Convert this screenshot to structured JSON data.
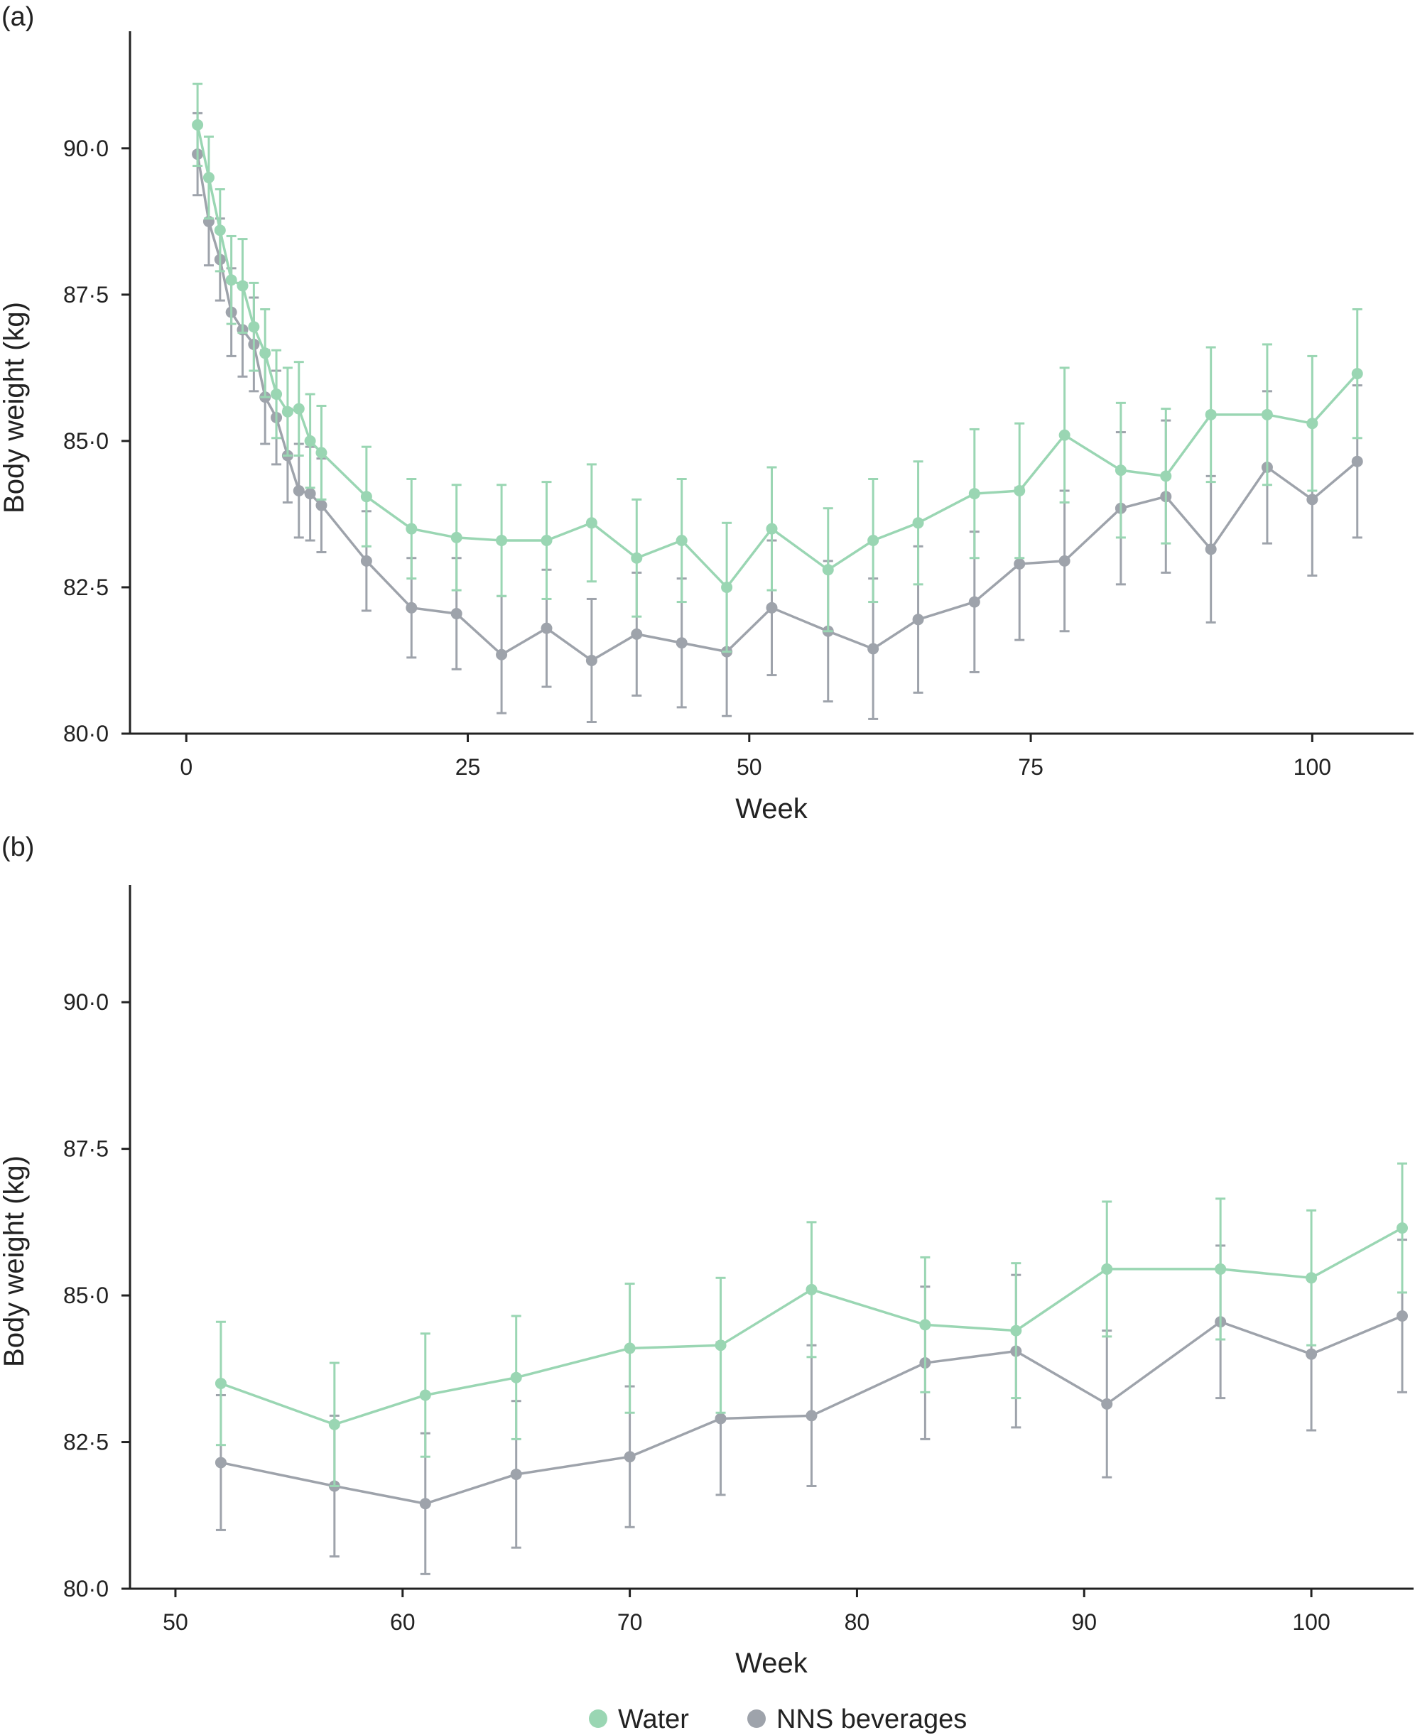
{
  "colors": {
    "water": "#9ad6b3",
    "nns": "#9ea3ab",
    "axis": "#222222"
  },
  "legend": [
    {
      "label": "Water",
      "color": "#9ad6b3"
    },
    {
      "label": "NNS beverages",
      "color": "#9ea3ab"
    }
  ],
  "chart_data": [
    {
      "type": "line",
      "panel_label": "(a)",
      "xlabel": "Week",
      "ylabel": "Body weight (kg)",
      "xlim": [
        -5,
        109
      ],
      "ylim": [
        80,
        92
      ],
      "xticks": [
        0,
        25,
        50,
        75,
        100
      ],
      "xtick_labels": [
        "0",
        "25",
        "50",
        "75",
        "100"
      ],
      "yticks": [
        80,
        82.5,
        85,
        87.5,
        90
      ],
      "ytick_labels": [
        "80·0",
        "82·5",
        "85·0",
        "87·5",
        "90·0"
      ],
      "grid": false,
      "series": [
        {
          "name": "Water",
          "color": "#9ad6b3",
          "x": [
            1,
            2,
            3,
            4,
            5,
            6,
            7,
            8,
            9,
            10,
            11,
            12,
            16,
            20,
            24,
            28,
            32,
            36,
            40,
            44,
            48,
            52,
            57,
            61,
            65,
            70,
            74,
            78,
            83,
            87,
            91,
            96,
            100,
            104
          ],
          "y": [
            90.4,
            89.5,
            88.6,
            87.75,
            87.65,
            86.95,
            86.5,
            85.8,
            85.5,
            85.55,
            85.0,
            84.8,
            84.05,
            83.5,
            83.35,
            83.3,
            83.3,
            83.6,
            83.0,
            83.3,
            82.5,
            83.5,
            82.8,
            83.3,
            83.6,
            84.1,
            84.15,
            85.1,
            84.5,
            84.4,
            85.45,
            85.45,
            85.3,
            86.15
          ],
          "error": [
            0.7,
            0.7,
            0.7,
            0.75,
            0.8,
            0.75,
            0.75,
            0.75,
            0.75,
            0.8,
            0.8,
            0.8,
            0.85,
            0.85,
            0.9,
            0.95,
            1.0,
            1.0,
            1.0,
            1.05,
            1.1,
            1.05,
            1.05,
            1.05,
            1.05,
            1.1,
            1.15,
            1.15,
            1.15,
            1.15,
            1.15,
            1.2,
            1.15,
            1.1
          ]
        },
        {
          "name": "NNS beverages",
          "color": "#9ea3ab",
          "x": [
            1,
            2,
            3,
            4,
            5,
            6,
            7,
            8,
            9,
            10,
            11,
            12,
            16,
            20,
            24,
            28,
            32,
            36,
            40,
            44,
            48,
            52,
            57,
            61,
            65,
            70,
            74,
            78,
            83,
            87,
            91,
            96,
            100,
            104
          ],
          "y": [
            89.9,
            88.75,
            88.1,
            87.2,
            86.9,
            86.65,
            85.75,
            85.4,
            84.75,
            84.15,
            84.1,
            83.9,
            82.95,
            82.15,
            82.05,
            81.35,
            81.8,
            81.25,
            81.7,
            81.55,
            81.4,
            82.15,
            81.75,
            81.45,
            81.95,
            82.25,
            82.9,
            82.95,
            83.85,
            84.05,
            83.15,
            84.55,
            84.0,
            84.65
          ],
          "error": [
            0.7,
            0.75,
            0.7,
            0.75,
            0.8,
            0.8,
            0.8,
            0.8,
            0.8,
            0.8,
            0.8,
            0.8,
            0.85,
            0.85,
            0.95,
            1.0,
            1.0,
            1.05,
            1.05,
            1.1,
            1.1,
            1.15,
            1.2,
            1.2,
            1.25,
            1.2,
            1.3,
            1.2,
            1.3,
            1.3,
            1.25,
            1.3,
            1.3,
            1.3
          ]
        }
      ]
    },
    {
      "type": "line",
      "panel_label": "(b)",
      "xlabel": "Week",
      "ylabel": "Body weight (kg)",
      "xlim": [
        48,
        104.5
      ],
      "ylim": [
        80,
        92
      ],
      "xticks": [
        50,
        60,
        70,
        80,
        90,
        100
      ],
      "xtick_labels": [
        "50",
        "60",
        "70",
        "80",
        "90",
        "100"
      ],
      "yticks": [
        80,
        82.5,
        85,
        87.5,
        90
      ],
      "ytick_labels": [
        "80·0",
        "82·5",
        "85·0",
        "87·5",
        "90·0"
      ],
      "grid": false,
      "series": [
        {
          "name": "Water",
          "color": "#9ad6b3",
          "x": [
            52,
            57,
            61,
            65,
            70,
            74,
            78,
            83,
            87,
            91,
            96,
            100,
            104
          ],
          "y": [
            83.5,
            82.8,
            83.3,
            83.6,
            84.1,
            84.15,
            85.1,
            84.5,
            84.4,
            85.45,
            85.45,
            85.3,
            86.15
          ],
          "error": [
            1.05,
            1.05,
            1.05,
            1.05,
            1.1,
            1.15,
            1.15,
            1.15,
            1.15,
            1.15,
            1.2,
            1.15,
            1.1
          ]
        },
        {
          "name": "NNS beverages",
          "color": "#9ea3ab",
          "x": [
            52,
            57,
            61,
            65,
            70,
            74,
            78,
            83,
            87,
            91,
            96,
            100,
            104
          ],
          "y": [
            82.15,
            81.75,
            81.45,
            81.95,
            82.25,
            82.9,
            82.95,
            83.85,
            84.05,
            83.15,
            84.55,
            84.0,
            84.65
          ],
          "error": [
            1.15,
            1.2,
            1.2,
            1.25,
            1.2,
            1.3,
            1.2,
            1.3,
            1.3,
            1.25,
            1.3,
            1.3,
            1.3
          ]
        }
      ]
    }
  ]
}
